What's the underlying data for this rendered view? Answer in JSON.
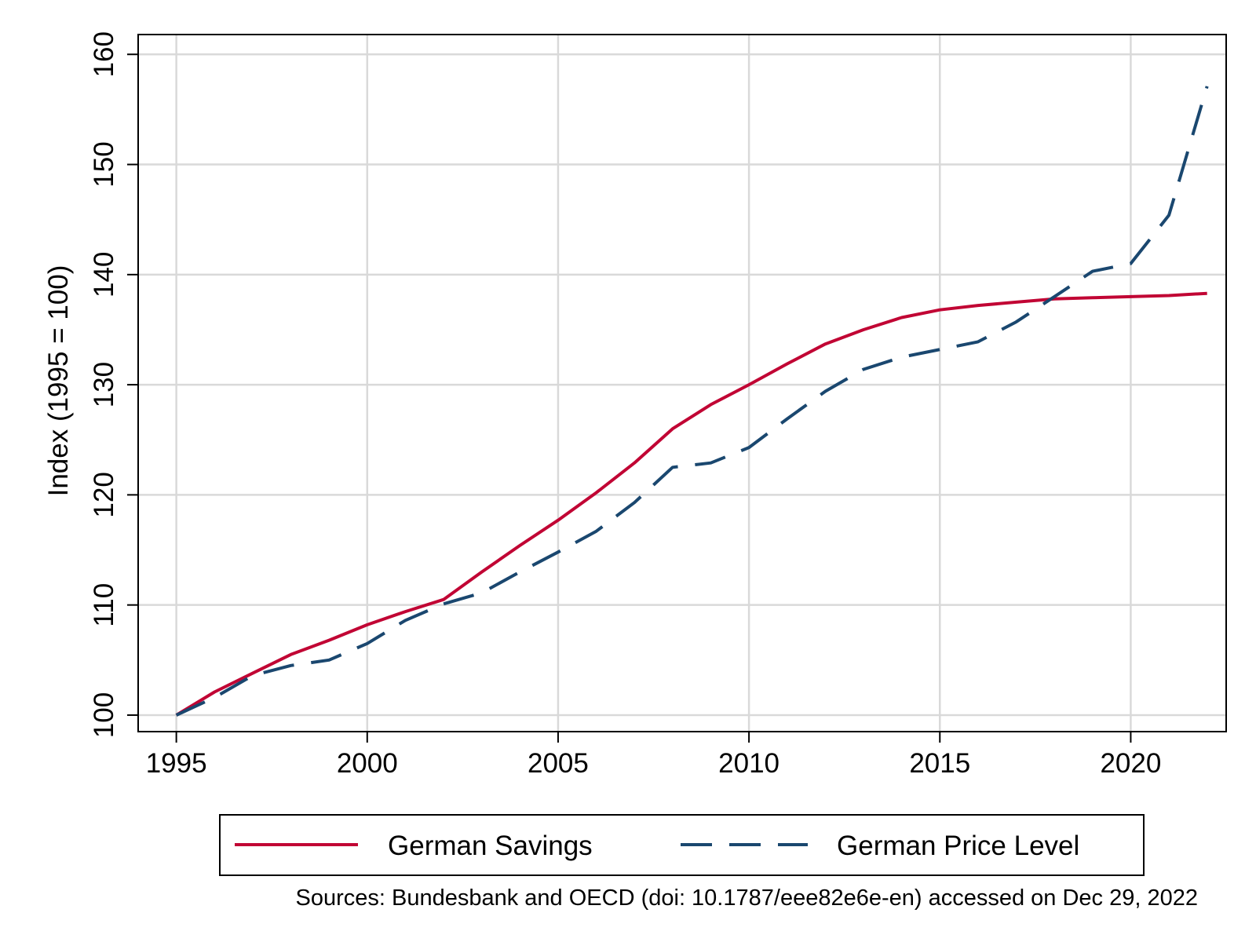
{
  "chart_data": {
    "type": "line",
    "title": "",
    "xlabel": "",
    "ylabel": "Index (1995 = 100)",
    "xlim": [
      1994,
      2022.5
    ],
    "ylim": [
      98.5,
      161.8
    ],
    "x_ticks": [
      1995,
      2000,
      2005,
      2010,
      2015,
      2020
    ],
    "y_ticks": [
      100,
      110,
      120,
      130,
      140,
      150,
      160
    ],
    "x_tick_labels": [
      "1995",
      "2000",
      "2005",
      "2010",
      "2015",
      "2020"
    ],
    "y_tick_labels": [
      "100",
      "110",
      "120",
      "130",
      "140",
      "150",
      "160"
    ],
    "grid": true,
    "legend_position": "bottom",
    "x": [
      1995,
      1996,
      1997,
      1998,
      1999,
      2000,
      2001,
      2002,
      2003,
      2004,
      2005,
      2006,
      2007,
      2008,
      2009,
      2010,
      2011,
      2012,
      2013,
      2014,
      2015,
      2016,
      2017,
      2018,
      2019,
      2020,
      2021,
      2022
    ],
    "series": [
      {
        "name": "German Savings",
        "color": "#c10534",
        "dash": "solid",
        "values": [
          100,
          102.1,
          103.8,
          105.5,
          106.8,
          108.2,
          109.4,
          110.5,
          113.0,
          115.4,
          117.7,
          120.2,
          122.9,
          126.0,
          128.2,
          130.0,
          131.9,
          133.7,
          135.0,
          136.1,
          136.8,
          137.2,
          137.5,
          137.8,
          137.9,
          138.0,
          138.1,
          138.3
        ]
      },
      {
        "name": "German Price Level",
        "color": "#1a476f",
        "dash": "dashed",
        "values": [
          100,
          101.6,
          103.6,
          104.5,
          105.0,
          106.5,
          108.6,
          110.1,
          111.1,
          113.0,
          114.8,
          116.7,
          119.3,
          122.5,
          122.9,
          124.3,
          126.9,
          129.4,
          131.4,
          132.5,
          133.2,
          133.9,
          135.7,
          138.0,
          140.3,
          141.0,
          145.4,
          157.1
        ]
      }
    ],
    "source_note": "Sources: Bundesbank and OECD (doi: 10.1787/eee82e6e-en) accessed on Dec 29, 2022"
  }
}
